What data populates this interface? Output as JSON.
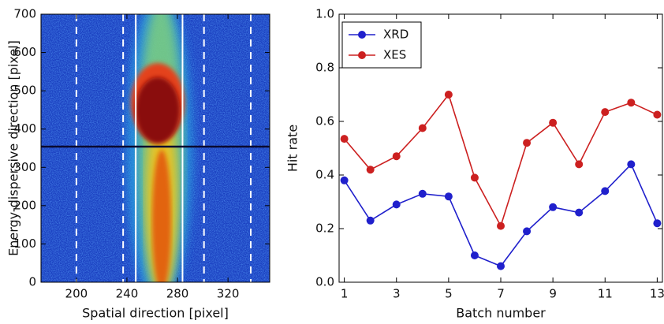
{
  "chart_data": [
    {
      "type": "heatmap",
      "xlabel": "Spatial direction [pixel]",
      "ylabel": "Energy-dispersive direction [pixel]",
      "xlim": [
        172,
        353
      ],
      "ylim": [
        0,
        700
      ],
      "xticks": [
        200,
        240,
        280,
        320
      ],
      "yticks": [
        0,
        100,
        200,
        300,
        400,
        500,
        600,
        700
      ],
      "dashed_lines": [
        200,
        237,
        301,
        338
      ],
      "solid_lines": [
        247,
        284
      ],
      "hline": 354
    },
    {
      "type": "line",
      "xlabel": "Batch number",
      "ylabel": "Hit rate",
      "x": [
        1,
        2,
        3,
        4,
        5,
        6,
        7,
        8,
        9,
        10,
        11,
        12,
        13
      ],
      "xlim": [
        0.8,
        13.2
      ],
      "ylim": [
        0,
        1.0
      ],
      "xticks": [
        1,
        3,
        5,
        7,
        9,
        11,
        13
      ],
      "yticks": [
        {
          "value": 0,
          "label": "0.0"
        },
        0.2,
        0.4,
        0.6,
        0.8,
        {
          "value": 1,
          "label": "1.0"
        }
      ],
      "legend": "upper left",
      "series": [
        {
          "name": "XRD",
          "color": "#2020cc",
          "values": [
            0.38,
            0.23,
            0.29,
            0.33,
            0.32,
            0.1,
            0.06,
            0.19,
            0.28,
            0.26,
            0.34,
            0.44,
            0.22
          ]
        },
        {
          "name": "XES",
          "color": "#cc2020",
          "values": [
            0.535,
            0.42,
            0.47,
            0.575,
            0.7,
            0.39,
            0.21,
            0.52,
            0.595,
            0.44,
            0.635,
            0.67,
            0.625
          ]
        }
      ]
    }
  ]
}
